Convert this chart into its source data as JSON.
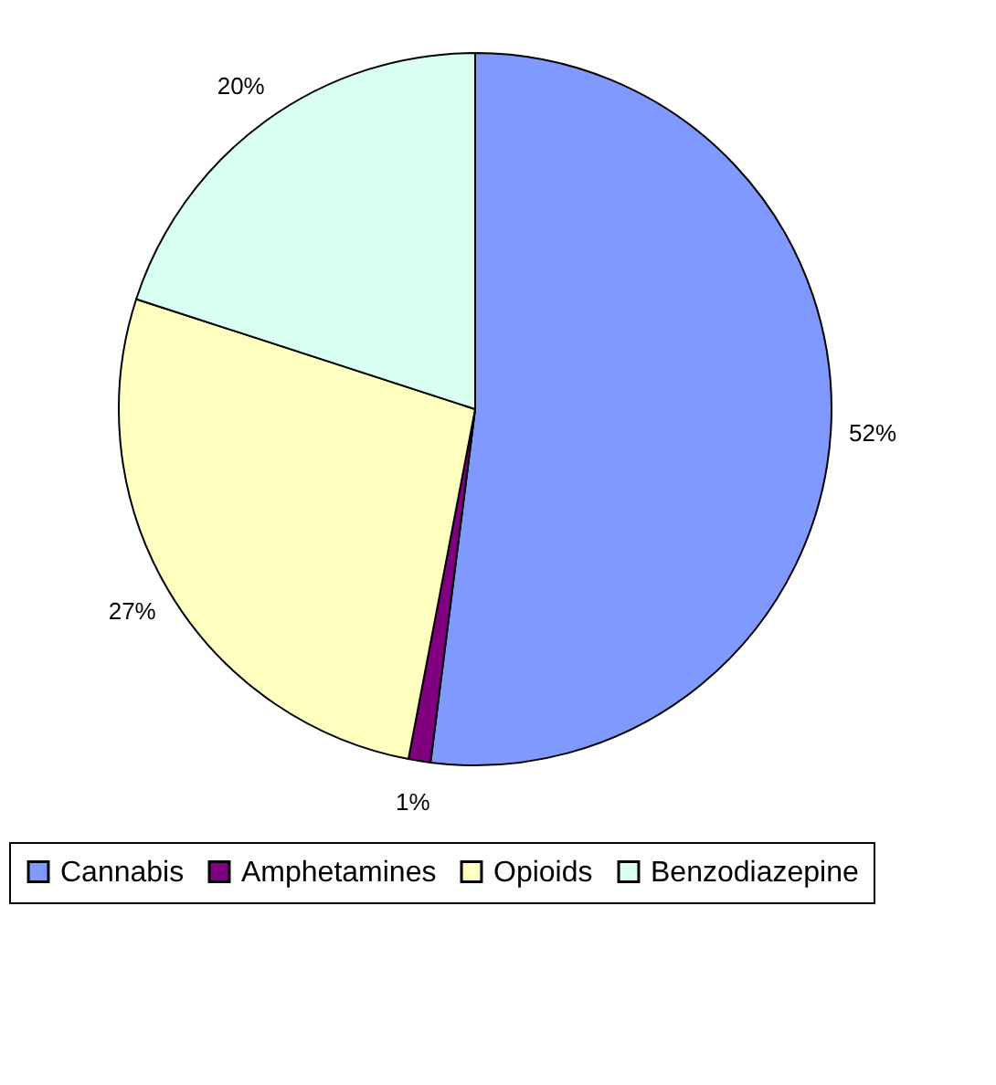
{
  "chart_data": {
    "type": "pie",
    "categories": [
      "Cannabis",
      "Amphetamines",
      "Opioids",
      "Benzodiazepine"
    ],
    "values": [
      52,
      1,
      27,
      20
    ],
    "value_labels": [
      "52%",
      "1%",
      "27%",
      "20%"
    ],
    "colors": [
      "#8099ff",
      "#800080",
      "#ffffc0",
      "#d9fff0"
    ],
    "legend": "bottom"
  }
}
